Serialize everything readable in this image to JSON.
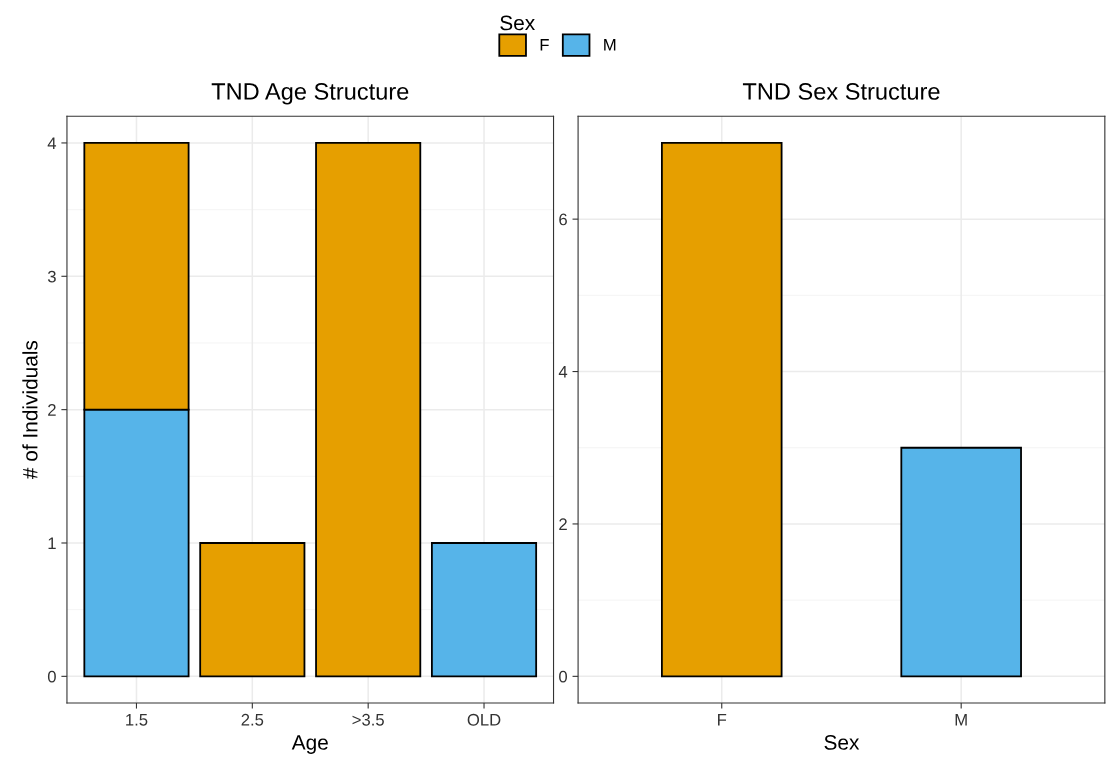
{
  "chart_data": [
    {
      "type": "bar",
      "title": "TND Age Structure",
      "xlabel": "Age",
      "ylabel": "# of Individuals",
      "categories": [
        "1.5",
        "2.5",
        ">3.5",
        "OLD"
      ],
      "stacked": true,
      "legend": "top",
      "legend_title": "Sex",
      "grid": true,
      "ylim": [
        -0.2,
        4.2
      ],
      "yticks": [
        0,
        1,
        2,
        3,
        4
      ],
      "series": [
        {
          "name": "M",
          "color": "#56b4e9",
          "values": [
            2,
            null,
            null,
            1
          ]
        },
        {
          "name": "F",
          "color": "#e69f00",
          "values": [
            2,
            1,
            4,
            null
          ]
        }
      ]
    },
    {
      "type": "bar",
      "title": "TND Sex Structure",
      "xlabel": "Sex",
      "categories": [
        "F",
        "M"
      ],
      "values": [
        7,
        3
      ],
      "colors": [
        "#e69f00",
        "#56b4e9"
      ],
      "grid": true,
      "ylim": [
        -0.35,
        7.35
      ],
      "yticks": [
        0,
        2,
        4,
        6
      ]
    }
  ]
}
